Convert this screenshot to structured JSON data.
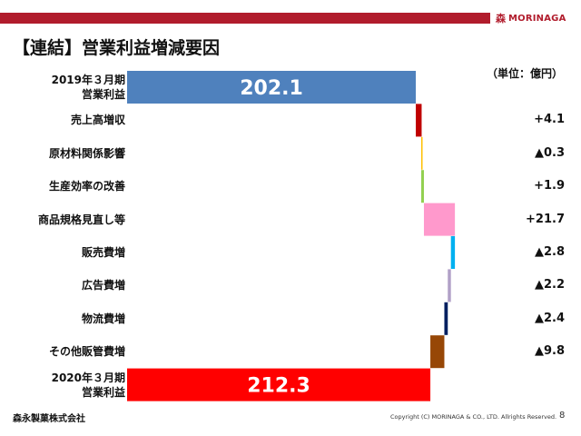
{
  "header": {
    "title": "【連結】営業利益増減要因",
    "unit": "（単位：億円）",
    "logo_mark": "森",
    "logo_text": "MORINAGA",
    "brand_color": "#b11c2c"
  },
  "chart_data": {
    "type": "bar",
    "orientation": "horizontal-waterfall",
    "unit": "（単位：億円）",
    "categories": [
      "2019年３月期\n営業利益",
      "売上高増収",
      "原材料関係影響",
      "生産効率の改善",
      "商品規格見直し等",
      "販売費増",
      "広告費増",
      "物流費増",
      "その他販管費増",
      "2020年３月期\n営業利益"
    ],
    "values": [
      202.1,
      4.1,
      -0.3,
      1.9,
      21.7,
      -2.8,
      -2.2,
      -2.4,
      -9.8,
      212.3
    ],
    "value_labels": [
      "202.1",
      "+4.1",
      "▲0.3",
      "+1.9",
      "+21.7",
      "▲2.8",
      "▲2.2",
      "▲2.4",
      "▲9.8",
      "212.3"
    ],
    "kinds": [
      "total",
      "delta",
      "delta",
      "delta",
      "delta",
      "delta",
      "delta",
      "delta",
      "delta",
      "total"
    ],
    "colors": [
      "#4f81bd",
      "#c00000",
      "#ffc000",
      "#92d050",
      "#ff99cc",
      "#00b0f0",
      "#b1a0c7",
      "#002060",
      "#974706",
      "#ff0000"
    ],
    "xlim": [
      0,
      245
    ],
    "grid": false,
    "legend": "none"
  },
  "footer": {
    "company": "森永製菓株式会社",
    "copyright": "Copyright (C) MORINAGA & CO., LTD. Allrights Reserved.",
    "page": "8"
  }
}
